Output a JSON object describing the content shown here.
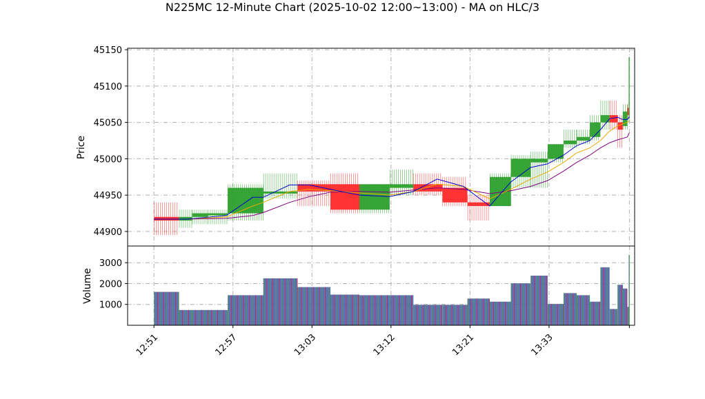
{
  "chart_data": {
    "type": "candlestick",
    "title": "N225MC 12-Minute Chart (2025-10-02 12:00~13:00) - MA on HLC/3",
    "price_panel": {
      "ylabel": "Price",
      "ylim": [
        44880,
        45152
      ],
      "yticks": [
        44900,
        44950,
        45000,
        45050,
        45100,
        45150
      ],
      "grid": true
    },
    "volume_panel": {
      "ylabel": "Volume",
      "ylim": [
        0,
        3800
      ],
      "yticks": [
        1000,
        2000,
        3000
      ],
      "grid": true
    },
    "x_ticks": [
      {
        "idx": 0,
        "label": "12:51"
      },
      {
        "idx": 6,
        "label": "12:57"
      },
      {
        "idx": 12,
        "label": "13:03"
      },
      {
        "idx": 18,
        "label": "13:12"
      },
      {
        "idx": 24,
        "label": "13:21"
      },
      {
        "idx": 30,
        "label": "13:33"
      }
    ],
    "x_range": [
      -2,
      36.5
    ],
    "colors": {
      "up": "#2ca02c",
      "down": "#ff2a2a",
      "ma_fast": "#0000cc",
      "ma_mid": "#e8a800",
      "ma_slow": "#800080"
    },
    "bars": [
      {
        "x0": 0.0,
        "x1": 1.9,
        "open": 44920,
        "close": 44915,
        "high": 44940,
        "low": 44895,
        "volume": 1600
      },
      {
        "x0": 1.9,
        "x1": 2.9,
        "open": 44915,
        "close": 44920,
        "high": 44930,
        "low": 44905,
        "volume": 730
      },
      {
        "x0": 2.9,
        "x1": 4.1,
        "open": 44920,
        "close": 44925,
        "high": 44930,
        "low": 44910,
        "volume": 730
      },
      {
        "x0": 4.1,
        "x1": 5.6,
        "open": 44925,
        "close": 44925,
        "high": 44930,
        "low": 44910,
        "volume": 730
      },
      {
        "x0": 5.6,
        "x1": 8.3,
        "open": 44925,
        "close": 44960,
        "high": 44965,
        "low": 44915,
        "volume": 1440
      },
      {
        "x0": 8.3,
        "x1": 10.9,
        "open": 44955,
        "close": 44955,
        "high": 44980,
        "low": 44945,
        "volume": 2250
      },
      {
        "x0": 10.9,
        "x1": 13.4,
        "open": 44965,
        "close": 44955,
        "high": 44970,
        "low": 44935,
        "volume": 1830
      },
      {
        "x0": 13.4,
        "x1": 15.6,
        "open": 44965,
        "close": 44930,
        "high": 44980,
        "low": 44925,
        "volume": 1470
      },
      {
        "x0": 15.6,
        "x1": 17.9,
        "open": 44930,
        "close": 44965,
        "high": 44965,
        "low": 44925,
        "volume": 1440
      },
      {
        "x0": 17.9,
        "x1": 19.7,
        "open": 44960,
        "close": 44965,
        "high": 44985,
        "low": 44950,
        "volume": 1440
      },
      {
        "x0": 19.7,
        "x1": 21.9,
        "open": 44965,
        "close": 44955,
        "high": 44980,
        "low": 44950,
        "volume": 980
      },
      {
        "x0": 21.9,
        "x1": 23.8,
        "open": 44960,
        "close": 44940,
        "high": 44975,
        "low": 44935,
        "volume": 980
      },
      {
        "x0": 23.8,
        "x1": 25.5,
        "open": 44940,
        "close": 44935,
        "high": 44950,
        "low": 44915,
        "volume": 1280
      },
      {
        "x0": 25.5,
        "x1": 27.1,
        "open": 44935,
        "close": 44975,
        "high": 44980,
        "low": 44935,
        "volume": 1130
      },
      {
        "x0": 27.1,
        "x1": 28.6,
        "open": 44975,
        "close": 45000,
        "high": 45005,
        "low": 44960,
        "volume": 2010
      },
      {
        "x0": 28.6,
        "x1": 29.9,
        "open": 44995,
        "close": 45000,
        "high": 45010,
        "low": 44960,
        "volume": 2380
      },
      {
        "x0": 29.9,
        "x1": 31.1,
        "open": 45000,
        "close": 45020,
        "high": 45020,
        "low": 44995,
        "volume": 1020
      },
      {
        "x0": 31.1,
        "x1": 32.1,
        "open": 45020,
        "close": 45025,
        "high": 45040,
        "low": 45015,
        "volume": 1540
      },
      {
        "x0": 32.1,
        "x1": 33.1,
        "open": 45025,
        "close": 45030,
        "high": 45040,
        "low": 45020,
        "volume": 1440
      },
      {
        "x0": 33.1,
        "x1": 33.9,
        "open": 45030,
        "close": 45050,
        "high": 45060,
        "low": 45025,
        "volume": 1130
      },
      {
        "x0": 33.9,
        "x1": 34.6,
        "open": 45050,
        "close": 45060,
        "high": 45080,
        "low": 45040,
        "volume": 2780
      },
      {
        "x0": 34.6,
        "x1": 35.2,
        "open": 45060,
        "close": 45050,
        "high": 45080,
        "low": 45040,
        "volume": 780
      },
      {
        "x0": 35.2,
        "x1": 35.6,
        "open": 45050,
        "close": 45040,
        "high": 45060,
        "low": 45015,
        "volume": 1940
      },
      {
        "x0": 35.6,
        "x1": 35.95,
        "open": 45045,
        "close": 45065,
        "high": 45075,
        "low": 45040,
        "volume": 1760
      },
      {
        "x0": 35.95,
        "x1": 36.05,
        "open": 45070,
        "close": 45060,
        "high": 45075,
        "low": 45055,
        "volume": 880
      },
      {
        "x0": 36.05,
        "x1": 36.12,
        "open": 45055,
        "close": 45140,
        "high": 45140,
        "low": 45050,
        "volume": 3370
      }
    ],
    "ma_fast": {
      "x": [
        0,
        2.5,
        5.5,
        7.5,
        8.3,
        10.3,
        11.8,
        13.4,
        15.6,
        17.9,
        19.7,
        21.5,
        23.5,
        25.5,
        27.1,
        28.6,
        29.9,
        31.1,
        32.1,
        33.1,
        33.9,
        34.6,
        35.2,
        35.6,
        35.95,
        36.1
      ],
      "y": [
        44917,
        44917,
        44922,
        44947,
        44947,
        44964,
        44964,
        44958,
        44950,
        44948,
        44955,
        44972,
        44962,
        44935,
        44968,
        44988,
        44993,
        45005,
        45018,
        45025,
        45040,
        45055,
        45057,
        45054,
        45054,
        45058
      ]
    },
    "ma_mid": {
      "x": [
        0,
        2.5,
        5.5,
        7.5,
        8.3,
        10.3,
        11.8,
        13.4,
        15.6,
        17.9,
        19.7,
        21.5,
        23.5,
        25.5,
        27.1,
        28.6,
        29.9,
        31.1,
        32.1,
        33.1,
        33.9,
        34.6,
        35.2,
        35.6,
        35.95,
        36.1
      ],
      "y": [
        44917,
        44917,
        44920,
        44935,
        44940,
        44955,
        44958,
        44956,
        44953,
        44950,
        44955,
        44965,
        44962,
        44945,
        44958,
        44972,
        44982,
        44995,
        45008,
        45015,
        45025,
        45038,
        45045,
        45048,
        45050,
        45052
      ]
    },
    "ma_slow": {
      "x": [
        0,
        2.5,
        5.5,
        7.5,
        8.3,
        10.3,
        11.8,
        13.4,
        15.6,
        17.9,
        19.7,
        21.5,
        23.5,
        25.5,
        27.1,
        28.6,
        29.9,
        31.1,
        32.1,
        33.1,
        33.9,
        34.6,
        35.2,
        35.6,
        35.95,
        36.1
      ],
      "y": [
        44917,
        44917,
        44918,
        44922,
        44926,
        44940,
        44948,
        44954,
        44955,
        44954,
        44957,
        44960,
        44958,
        44952,
        44956,
        44962,
        44970,
        44983,
        44995,
        45005,
        45015,
        45022,
        45026,
        45028,
        45030,
        45036
      ]
    }
  }
}
